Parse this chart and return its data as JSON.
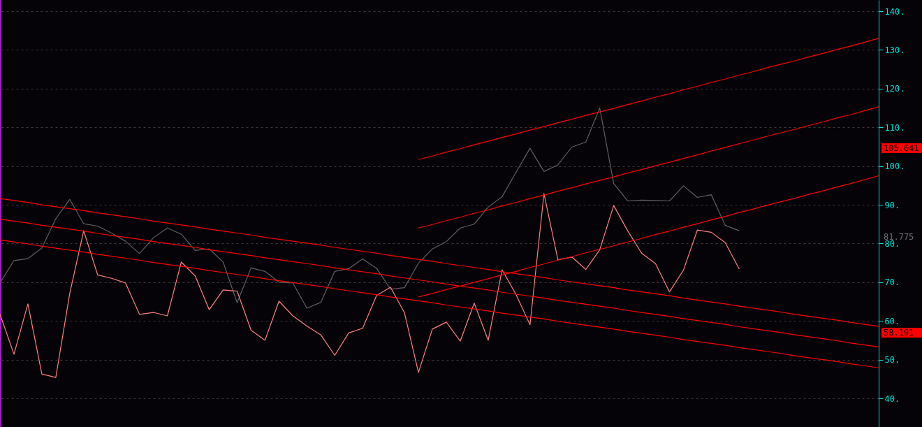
{
  "chart_data": {
    "type": "line",
    "ylim": [
      32.6,
      142.9
    ],
    "categories": [
      null,
      null,
      null,
      null,
      null,
      null,
      null,
      null,
      null,
      null,
      null,
      null,
      null,
      null,
      null,
      null,
      null,
      null,
      null,
      null,
      null,
      null,
      null,
      null,
      null,
      null,
      null,
      null,
      null,
      null,
      null,
      null,
      null,
      null,
      null,
      null,
      null,
      null,
      null,
      null,
      null,
      null,
      null,
      null,
      null,
      null,
      null,
      null,
      null,
      null,
      null,
      null,
      null,
      null,
      null,
      null,
      null,
      null,
      null,
      null,
      null,
      null,
      null,
      null
    ],
    "yticks": [
      {
        "value": 40,
        "label": "40."
      },
      {
        "value": 50,
        "label": "50."
      },
      {
        "value": 60,
        "label": "60."
      },
      {
        "value": 70,
        "label": "70."
      },
      {
        "value": 80,
        "label": "80."
      },
      {
        "value": 90,
        "label": "90."
      },
      {
        "value": 100,
        "label": "100."
      },
      {
        "value": 110,
        "label": "110."
      },
      {
        "value": 120,
        "label": "120."
      },
      {
        "value": 130,
        "label": "130."
      },
      {
        "value": 140,
        "label": "140."
      }
    ],
    "tick_labels": "y",
    "grid": "y",
    "marker": "none",
    "line_style": "solid",
    "series": [
      {
        "color": "#606060",
        "values": [
          69.8,
          75.6,
          76.1,
          78.8,
          86.4,
          91.4,
          85.1,
          84.5,
          82.7,
          80.6,
          77.4,
          81.5,
          84,
          82.4,
          78.2,
          78.6,
          75.2,
          64.7,
          73.7,
          72.8,
          70,
          69.8,
          63.3,
          64.8,
          72.8,
          73.5,
          76,
          73.6,
          68.2,
          68.6,
          74.9,
          78.6,
          80.5,
          84,
          85,
          89.4,
          92.1,
          98.4,
          104.6,
          98.6,
          100.3,
          104.9,
          106.2,
          115,
          95.5,
          91,
          91.2,
          91.1,
          91,
          94.9,
          91.9,
          92.6,
          84.7,
          83.3,
          null,
          null,
          null,
          null,
          null,
          null,
          null,
          null,
          null,
          null
        ]
      },
      {
        "color": "#ff8080",
        "values": [
          61.7,
          51.4,
          64.4,
          46.3,
          45.4,
          67.1,
          83.3,
          71.9,
          71,
          69.8,
          61.7,
          62.2,
          61.3,
          75.2,
          71.6,
          62.9,
          68,
          67.7,
          57.6,
          55,
          65.1,
          61.3,
          58.7,
          56.4,
          51.1,
          56.9,
          58.1,
          66.6,
          68.7,
          62.1,
          46.7,
          57.9,
          59.7,
          54.8,
          64.6,
          55,
          73.2,
          66.8,
          59,
          92.9,
          75.8,
          76.5,
          73.3,
          78.4,
          89.8,
          83.3,
          77.5,
          74.8,
          67.5,
          73.1,
          83.5,
          82.9,
          80.2,
          73.4,
          null,
          null,
          null,
          null,
          null,
          null,
          null,
          null,
          null,
          null
        ]
      },
      {
        "color": "#ff0000",
        "values": [
          91.6,
          91.1,
          90.6,
          90.0,
          89.5,
          89.0,
          88.5,
          87.9,
          87.4,
          86.9,
          86.4,
          85.8,
          85.3,
          84.8,
          84.3,
          83.7,
          83.2,
          82.7,
          82.2,
          81.6,
          81.1,
          80.6,
          80.1,
          79.6,
          79.0,
          78.5,
          78.0,
          77.5,
          76.9,
          76.4,
          75.9,
          75.4,
          74.8,
          74.3,
          73.8,
          73.3,
          72.7,
          72.2,
          71.7,
          71.2,
          70.6,
          70.1,
          69.6,
          69.1,
          68.6,
          68.0,
          67.5,
          67.0,
          66.5,
          65.9,
          65.4,
          64.9,
          64.4,
          63.8,
          63.3,
          62.8,
          62.3,
          61.7,
          61.2,
          60.7,
          60.2,
          59.6,
          59.1,
          58.6
        ]
      },
      {
        "color": "#ff0000",
        "values": [
          86.3,
          85.8,
          85.3,
          84.7,
          84.2,
          83.7,
          83.2,
          82.6,
          82.1,
          81.6,
          81.1,
          80.5,
          80.0,
          79.5,
          79.0,
          78.4,
          77.9,
          77.4,
          76.9,
          76.3,
          75.8,
          75.3,
          74.8,
          74.3,
          73.7,
          73.2,
          72.7,
          72.2,
          71.6,
          71.1,
          70.6,
          70.1,
          69.5,
          69.0,
          68.5,
          68.0,
          67.4,
          66.9,
          66.4,
          65.9,
          65.3,
          64.8,
          64.3,
          63.8,
          63.3,
          62.7,
          62.2,
          61.7,
          61.2,
          60.6,
          60.1,
          59.6,
          59.1,
          58.5,
          58.0,
          57.5,
          57.0,
          56.4,
          55.9,
          55.4,
          54.9,
          54.3,
          53.8,
          53.3
        ]
      },
      {
        "color": "#ff0000",
        "values": [
          80.9,
          80.4,
          79.9,
          79.3,
          78.8,
          78.3,
          77.8,
          77.2,
          76.7,
          76.2,
          75.7,
          75.1,
          74.6,
          74.1,
          73.6,
          73.0,
          72.5,
          72.0,
          71.5,
          70.9,
          70.4,
          69.9,
          69.4,
          68.9,
          68.3,
          67.8,
          67.3,
          66.8,
          66.2,
          65.7,
          65.2,
          64.7,
          64.1,
          63.6,
          63.1,
          62.6,
          62.0,
          61.5,
          61.0,
          60.5,
          59.9,
          59.4,
          58.9,
          58.4,
          57.9,
          57.3,
          56.8,
          56.3,
          55.8,
          55.2,
          54.7,
          54.2,
          53.7,
          53.1,
          52.6,
          52.1,
          51.6,
          51.0,
          50.5,
          50.0,
          49.5,
          48.9,
          48.4,
          47.9
        ]
      },
      {
        "color": "#ff0000",
        "values": [
          null,
          null,
          null,
          null,
          null,
          null,
          null,
          null,
          null,
          null,
          null,
          null,
          null,
          null,
          null,
          null,
          null,
          null,
          null,
          null,
          null,
          null,
          null,
          null,
          null,
          null,
          null,
          null,
          null,
          null,
          101.7,
          102.6,
          103.6,
          104.5,
          105.5,
          106.4,
          107.4,
          108.3,
          109.3,
          110.2,
          111.2,
          112.1,
          113.1,
          114.0,
          114.9,
          115.9,
          116.8,
          117.8,
          118.7,
          119.7,
          120.6,
          121.6,
          122.5,
          123.5,
          124.4,
          125.4,
          126.3,
          127.2,
          128.2,
          129.1,
          130.1,
          131.0,
          132.0,
          133.0
        ]
      },
      {
        "color": "#ff0000",
        "values": [
          null,
          null,
          null,
          null,
          null,
          null,
          null,
          null,
          null,
          null,
          null,
          null,
          null,
          null,
          null,
          null,
          null,
          null,
          null,
          null,
          null,
          null,
          null,
          null,
          null,
          null,
          null,
          null,
          null,
          null,
          84.0,
          84.9,
          85.9,
          86.8,
          87.8,
          88.7,
          89.7,
          90.6,
          91.6,
          92.5,
          93.5,
          94.4,
          95.4,
          96.3,
          97.2,
          98.2,
          99.1,
          100.1,
          101.0,
          102.0,
          102.9,
          103.9,
          104.8,
          105.8,
          106.7,
          107.7,
          108.6,
          109.5,
          110.5,
          111.4,
          112.4,
          113.3,
          114.3,
          115.3
        ]
      },
      {
        "color": "#ff0000",
        "values": [
          null,
          null,
          null,
          null,
          null,
          null,
          null,
          null,
          null,
          null,
          null,
          null,
          null,
          null,
          null,
          null,
          null,
          null,
          null,
          null,
          null,
          null,
          null,
          null,
          null,
          null,
          null,
          null,
          null,
          null,
          66.2,
          67.1,
          68.1,
          69.0,
          70.0,
          70.9,
          71.9,
          72.8,
          73.8,
          74.7,
          75.7,
          76.6,
          77.6,
          78.5,
          79.4,
          80.4,
          81.3,
          82.3,
          83.2,
          84.2,
          85.1,
          86.1,
          87.0,
          88.0,
          88.9,
          89.9,
          90.8,
          91.7,
          92.7,
          93.6,
          94.6,
          95.5,
          96.5,
          97.5
        ]
      }
    ],
    "annotations": [
      "105.641",
      "58.191",
      "81.775"
    ]
  }
}
